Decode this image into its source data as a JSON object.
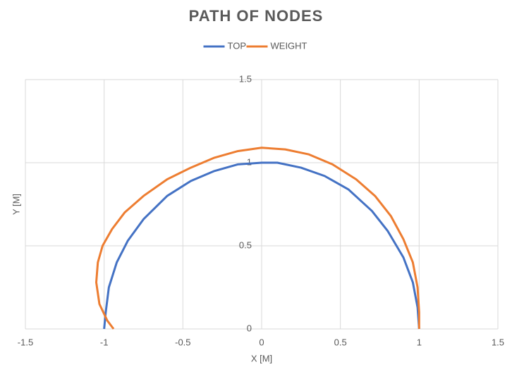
{
  "chart_data": {
    "type": "line",
    "title": "PATH OF NODES",
    "x_label": "X [M]",
    "y_label": "Y [M]",
    "xlim": [
      -1.5,
      1.5
    ],
    "xticks": [
      -1.5,
      -1,
      -0.5,
      0,
      0.5,
      1,
      1.5
    ],
    "ylim": [
      0,
      1.5
    ],
    "yticks": [
      0,
      0.5,
      1,
      1.5
    ],
    "grid": true,
    "legend": "top",
    "series": [
      {
        "name": "TOP",
        "color": "#4472c4",
        "x": [
          -1,
          -0.99,
          -0.97,
          -0.92,
          -0.85,
          -0.75,
          -0.6,
          -0.45,
          -0.3,
          -0.15,
          0,
          0.1,
          0.25,
          0.4,
          0.55,
          0.7,
          0.8,
          0.9,
          0.96,
          0.99,
          1
        ],
        "values": [
          0,
          0.1,
          0.25,
          0.4,
          0.53,
          0.66,
          0.8,
          0.89,
          0.95,
          0.99,
          1,
          1,
          0.97,
          0.92,
          0.84,
          0.71,
          0.59,
          0.43,
          0.28,
          0.13,
          0
        ]
      },
      {
        "name": "WEIGHT",
        "color": "#ed7d31",
        "x": [
          -0.94,
          -0.98,
          -1.03,
          -1.05,
          -1.04,
          -1.01,
          -0.95,
          -0.87,
          -0.75,
          -0.6,
          -0.45,
          -0.3,
          -0.15,
          0,
          0.15,
          0.3,
          0.45,
          0.6,
          0.72,
          0.82,
          0.9,
          0.96,
          0.99,
          1.0,
          1.0
        ],
        "values": [
          0,
          0.05,
          0.15,
          0.28,
          0.4,
          0.5,
          0.6,
          0.7,
          0.8,
          0.9,
          0.97,
          1.03,
          1.07,
          1.09,
          1.08,
          1.05,
          0.99,
          0.9,
          0.8,
          0.68,
          0.54,
          0.4,
          0.25,
          0.1,
          0
        ]
      }
    ]
  }
}
